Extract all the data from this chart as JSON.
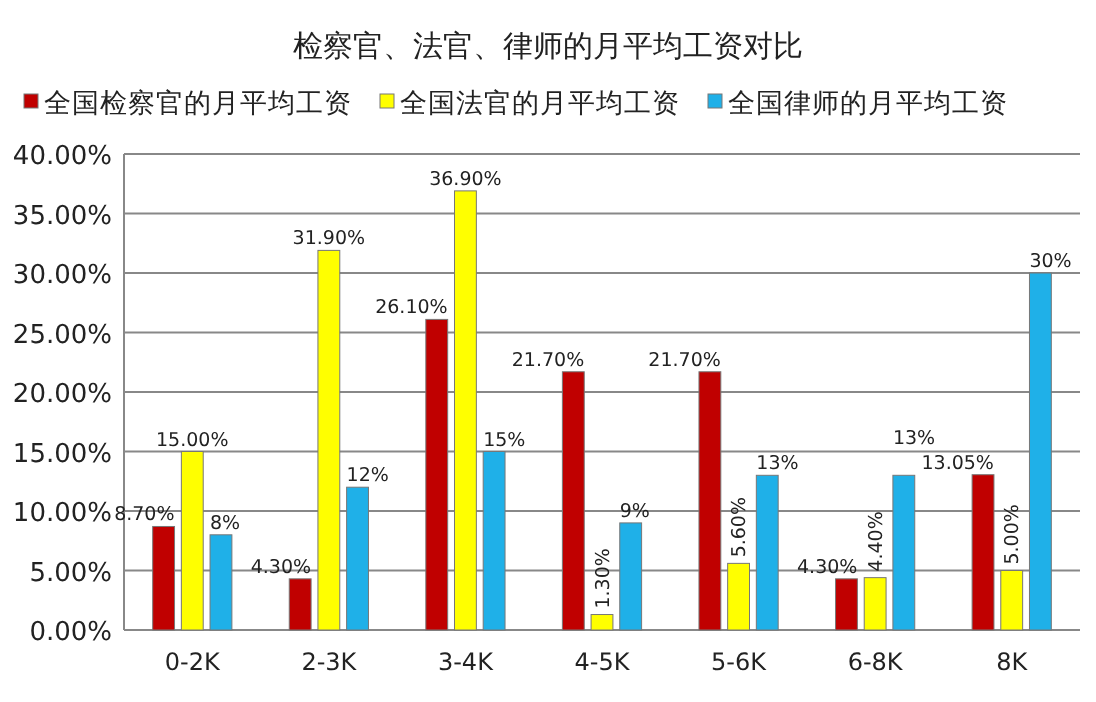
{
  "chart_data": {
    "type": "bar",
    "title": "检察官、法官、律师的月平均工资对比",
    "categories": [
      "0-2K",
      "2-3K",
      "3-4K",
      "4-5K",
      "5-6K",
      "6-8K",
      "8K"
    ],
    "series": [
      {
        "name": "全国检察官的月平均工资",
        "color": "#c00000",
        "values": [
          8.7,
          4.3,
          26.1,
          21.7,
          21.7,
          4.3,
          13.05
        ],
        "value_labels": [
          "8.70%",
          "4.30%",
          "26.10%",
          "21.70%",
          "21.70%",
          "4.30%",
          "13.05%"
        ]
      },
      {
        "name": "全国法官的月平均工资",
        "color": "#ffff00",
        "values": [
          15,
          31.9,
          36.9,
          1.3,
          5.6,
          4.4,
          5.0
        ],
        "value_labels": [
          "15.00%",
          "31.90%",
          "36.90%",
          "1.30%",
          "5.60%",
          "4.40%",
          "5.00%"
        ]
      },
      {
        "name": "全国律师的月平均工资",
        "color": "#1fb0e8",
        "values": [
          8,
          12,
          15,
          9,
          13,
          13,
          30
        ],
        "value_labels": [
          "8%",
          "12%",
          "15%",
          "9%",
          "13%",
          "13%",
          "30%"
        ]
      }
    ],
    "ylim": [
      0,
      40
    ],
    "yticks": [
      {
        "value": 0,
        "label": "0.00%"
      },
      {
        "value": 5,
        "label": "5.00%"
      },
      {
        "value": 10,
        "label": "10.00%"
      },
      {
        "value": 15,
        "label": "15.00%"
      },
      {
        "value": 20,
        "label": "20.00%"
      },
      {
        "value": 25,
        "label": "25.00%"
      },
      {
        "value": 30,
        "label": "30.00%"
      },
      {
        "value": 35,
        "label": "35.00%"
      },
      {
        "value": 40,
        "label": "40.00%"
      }
    ],
    "grid": "y",
    "legend": "top"
  }
}
